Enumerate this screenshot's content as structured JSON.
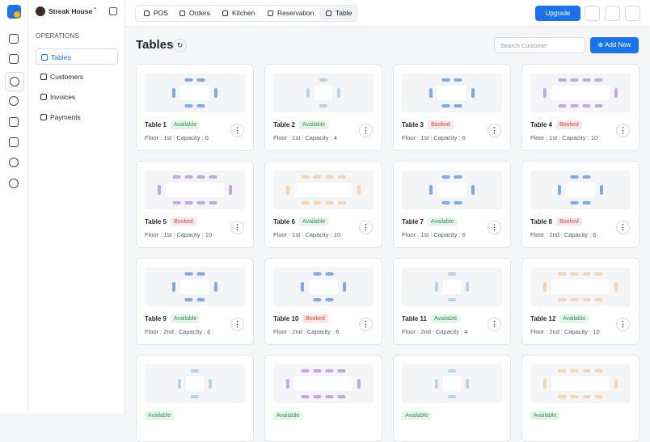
{
  "app": {
    "restaurant": "Streak House"
  },
  "sidebar": {
    "section": "OPERATIONS",
    "items": [
      "Tables",
      "Customers",
      "Invoices",
      "Payments"
    ]
  },
  "topbar": {
    "tabs": [
      "POS",
      "Orders",
      "Kitchen",
      "Reservation",
      "Table"
    ],
    "upgrade": "Upgrade"
  },
  "page": {
    "title": "Tables",
    "search_placeholder": "Search Customer",
    "add_button": "Add New",
    "floor_label": "Floor :",
    "capacity_label": "Capacity :"
  },
  "tables": [
    {
      "name": "Table 1",
      "status": "Available",
      "floor": "1st",
      "capacity": 6,
      "color": "#7aa9f0"
    },
    {
      "name": "Table 2",
      "status": "Available",
      "floor": "1st",
      "capacity": 4,
      "color": "#b7d3e2"
    },
    {
      "name": "Table 3",
      "status": "Booked",
      "floor": "1st",
      "capacity": 6,
      "color": "#7aa9f0"
    },
    {
      "name": "Table 4",
      "status": "Booked",
      "floor": "1st",
      "capacity": 10,
      "color": "#c4a5e6"
    },
    {
      "name": "Table 5",
      "status": "Booked",
      "floor": "1st",
      "capacity": 10,
      "color": "#c4a5e6"
    },
    {
      "name": "Table 6",
      "status": "Available",
      "floor": "1st",
      "capacity": 10,
      "color": "#f7d3ae"
    },
    {
      "name": "Table 7",
      "status": "Available",
      "floor": "1st",
      "capacity": 6,
      "color": "#7aa9f0"
    },
    {
      "name": "Table 8",
      "status": "Booked",
      "floor": "2nd",
      "capacity": 6,
      "color": "#7aa9f0"
    },
    {
      "name": "Table 9",
      "status": "Available",
      "floor": "2nd",
      "capacity": 6,
      "color": "#7aa9f0"
    },
    {
      "name": "Table 10",
      "status": "Booked",
      "floor": "2nd",
      "capacity": 6,
      "color": "#7aa9f0"
    },
    {
      "name": "Table 11",
      "status": "Available",
      "floor": "2nd",
      "capacity": 4,
      "color": "#b7d3e2"
    },
    {
      "name": "Table 12",
      "status": "Available",
      "floor": "2nd",
      "capacity": 10,
      "color": "#f7d3ae"
    },
    {
      "status": "Available",
      "capacity": 4,
      "color": "#b7d3e2"
    },
    {
      "status": "Available",
      "capacity": 10,
      "color": "#c4a5e6"
    },
    {
      "status": "Available",
      "capacity": 4,
      "color": "#b7d3e2"
    },
    {
      "status": "Available",
      "capacity": 10,
      "color": "#f7d3ae"
    }
  ]
}
